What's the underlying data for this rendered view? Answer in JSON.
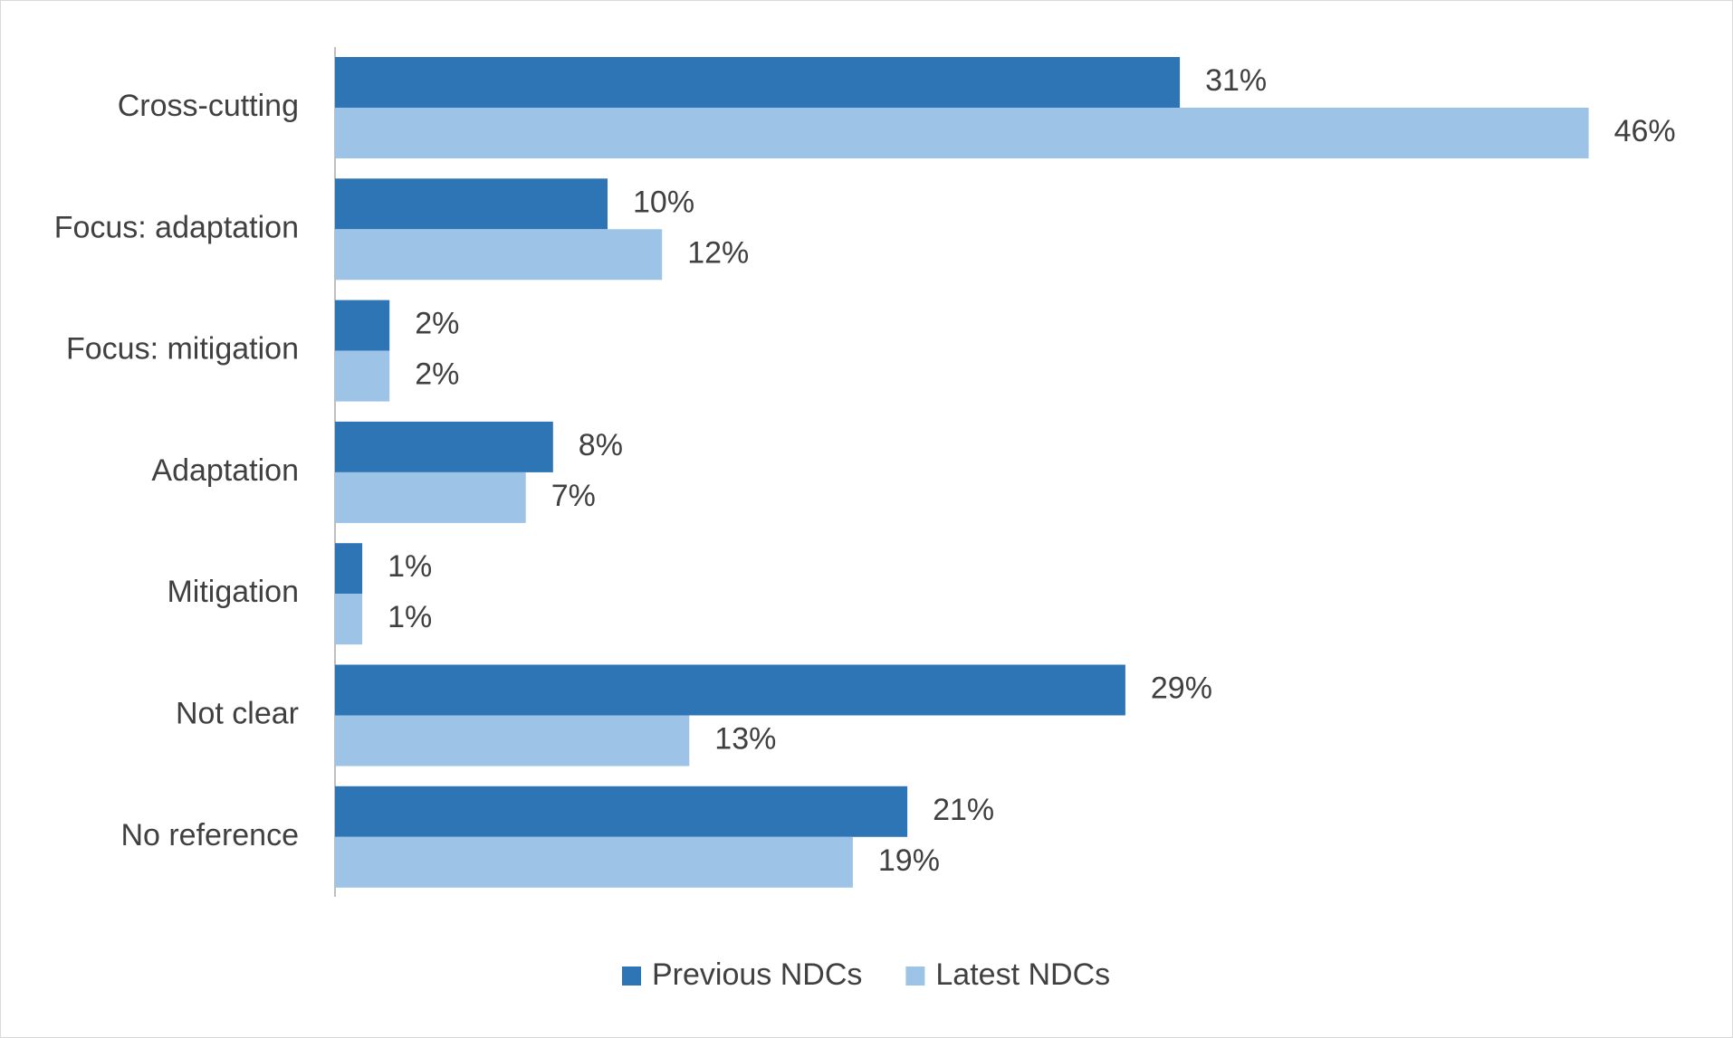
{
  "chart_data": {
    "type": "bar",
    "orientation": "horizontal",
    "categories": [
      "Cross-cutting",
      "Focus: adaptation",
      "Focus: mitigation",
      "Adaptation",
      "Mitigation",
      "Not clear",
      "No reference"
    ],
    "series": [
      {
        "name": "Previous NDCs",
        "color": "#2e75b6",
        "values": [
          31,
          10,
          2,
          8,
          1,
          29,
          21
        ],
        "value_labels": [
          "31%",
          "10%",
          "2%",
          "8%",
          "1%",
          "29%",
          "21%"
        ]
      },
      {
        "name": "Latest NDCs",
        "color": "#9dc3e6",
        "values": [
          46,
          12,
          2,
          7,
          1,
          13,
          19
        ],
        "value_labels": [
          "46%",
          "12%",
          "2%",
          "7%",
          "1%",
          "13%",
          "19%"
        ]
      }
    ],
    "xlim": [
      0,
      50
    ],
    "legend": "bottom"
  }
}
